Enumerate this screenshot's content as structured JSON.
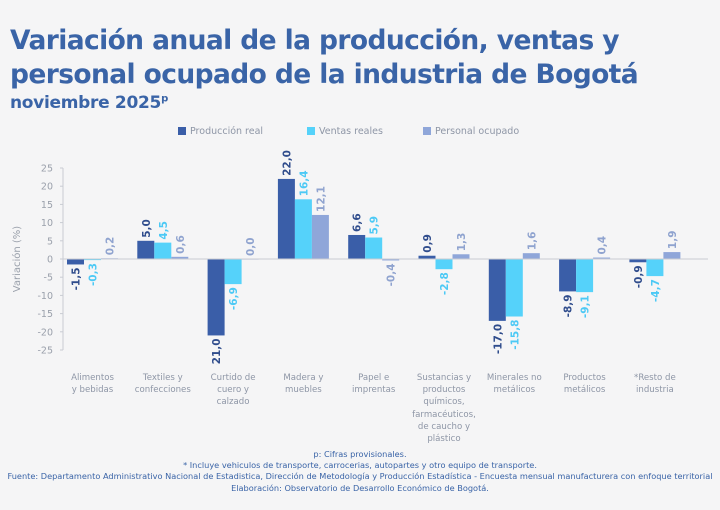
{
  "title": "Variación anual de la producción, ventas y personal ocupado de la industria de Bogotá",
  "subtitle": "noviembre 2025",
  "subtitle_sup": "p",
  "chart_data": {
    "type": "bar",
    "title": "Variación anual de la producción, ventas y personal ocupado de la industria de Bogotá",
    "subtitle": "noviembre 2025p",
    "xlabel": "",
    "ylabel": "Variación (%)",
    "ylim": [
      -25,
      25
    ],
    "yticks": [
      25,
      20,
      15,
      10,
      5,
      0,
      -5,
      -10,
      -15,
      -20,
      -25
    ],
    "grid": false,
    "legend_position": "top",
    "categories": [
      "Alimentos y bebidas",
      "Textiles y confecciones",
      "Curtido de cuero y calzado",
      "Madera y muebles",
      "Papel e imprentas",
      "Sustancias y productos químicos, farmacéuticos, de caucho y plástico",
      "Minerales no metálicos",
      "Productos metálicos",
      "*Resto de industria"
    ],
    "category_lines": [
      [
        "Alimentos",
        "y bebidas"
      ],
      [
        "Textiles y",
        "confecciones"
      ],
      [
        "Curtido de",
        "cuero y",
        "calzado"
      ],
      [
        "Madera y",
        "muebles"
      ],
      [
        "Papel e",
        "imprentas"
      ],
      [
        "Sustancias y",
        "productos",
        "químicos,",
        "farmacéuticos,",
        "de caucho y",
        "plástico"
      ],
      [
        "Minerales no",
        "metálicos"
      ],
      [
        "Productos",
        "metálicos"
      ],
      [
        "*Resto de",
        "industria"
      ]
    ],
    "series": [
      {
        "name": "Producción real",
        "color": "#3a5ea8",
        "label_color": "#2f4c8c",
        "values": [
          -1.5,
          5.0,
          -21.0,
          22.0,
          6.6,
          0.9,
          -17.0,
          -8.9,
          -0.9
        ],
        "labels": [
          "-1,5",
          "5,0",
          "-21,0",
          "22,0",
          "6,6",
          "0,9",
          "-17,0",
          "-8,9",
          "-0,9"
        ]
      },
      {
        "name": "Ventas reales",
        "color": "#55d2fa",
        "label_color": "#4cc9f5",
        "values": [
          -0.3,
          4.5,
          -6.9,
          16.4,
          5.9,
          -2.8,
          -15.8,
          -9.1,
          -4.7
        ],
        "labels": [
          "-0,3",
          "4,5",
          "-6,9",
          "16,4",
          "5,9",
          "-2,8",
          "-15,8",
          "-9,1",
          "-4,7"
        ]
      },
      {
        "name": "Personal ocupado",
        "color": "#8fa6d9",
        "label_color": "#8fa3cf",
        "values": [
          0.2,
          0.6,
          0.0,
          12.1,
          -0.4,
          1.3,
          1.6,
          0.4,
          1.9
        ],
        "labels": [
          "0,2",
          "0,6",
          "0,0",
          "12,1",
          "-0,4",
          "1,3",
          "1,6",
          "0,4",
          "1,9"
        ]
      }
    ]
  },
  "notes": [
    "p: Cifras provisionales.",
    "*  Incluye vehiculos de transporte, carrocerias, autopartes y otro equipo de transporte.",
    "Fuente: Departamento Administrativo Nacional de Estadistica, Dirección de Metodología y Producción Estadística - Encuesta mensual manufacturera con enfoque territorial",
    "Elaboración: Observatorio de Desarrollo Económico de Bogotá."
  ]
}
